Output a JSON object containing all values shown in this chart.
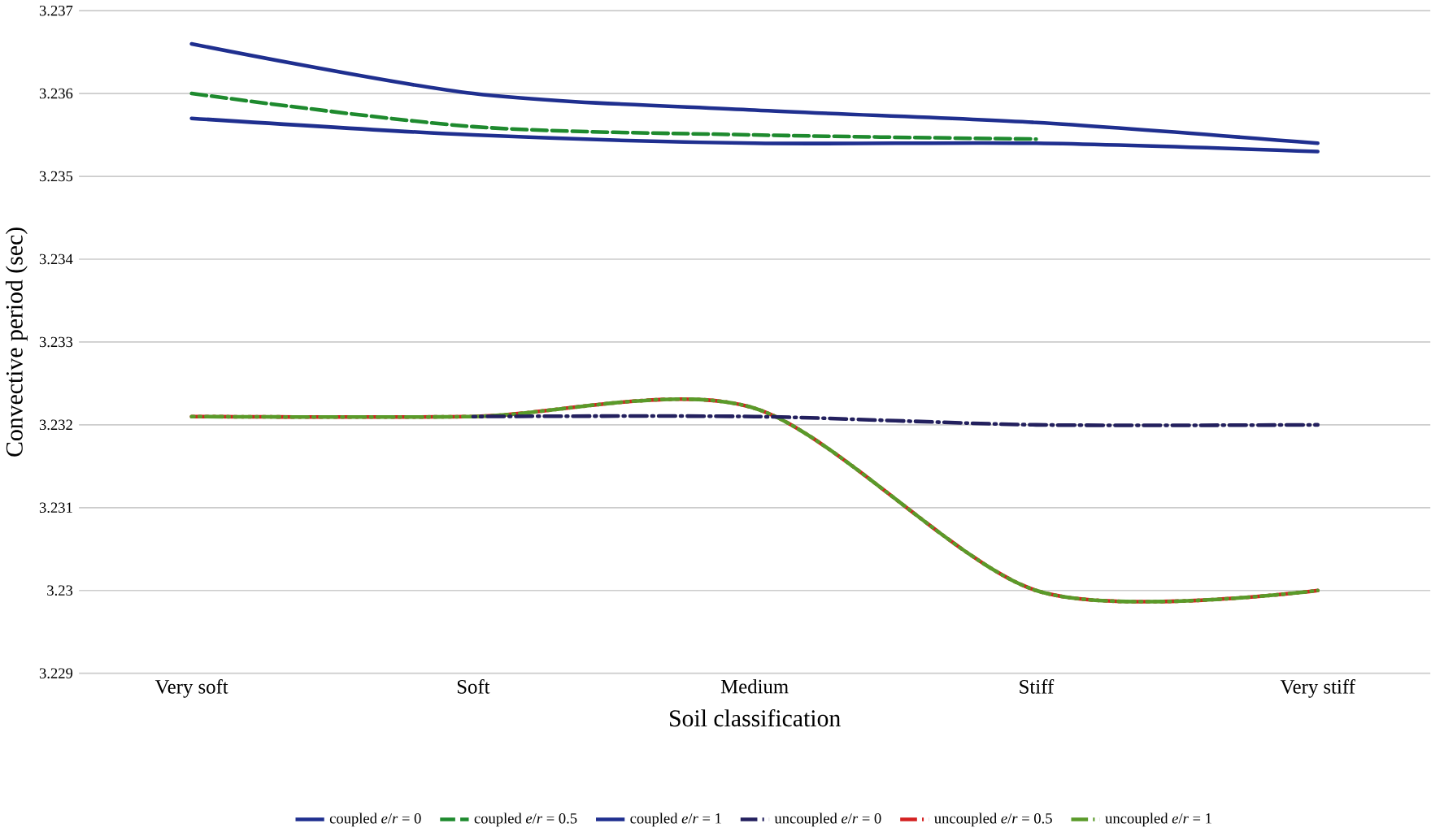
{
  "chart_data": {
    "type": "line",
    "xlabel": "Soil classification",
    "ylabel": "Convective period (sec)",
    "categories": [
      "Very soft",
      "Soft",
      "Medium",
      "Stiff",
      "Very stiff"
    ],
    "ylim": [
      3.229,
      3.237
    ],
    "yticks": [
      3.229,
      3.23,
      3.231,
      3.232,
      3.233,
      3.234,
      3.235,
      3.236,
      3.237
    ],
    "grid": "y",
    "legend": "bottom",
    "marker": "none",
    "series": [
      {
        "name": "coupled *e*/*r* = 0",
        "color": "#1f2f8f",
        "line_style": "solid",
        "values": [
          3.2366,
          3.236,
          3.2358,
          3.23565,
          3.2354
        ]
      },
      {
        "name": "coupled *e*/*r* = 0.5",
        "color": "#1e8a2e",
        "line_style": "dashed",
        "values": [
          3.236,
          3.2356,
          3.2355,
          3.23545,
          null
        ]
      },
      {
        "name": "coupled *e*/*r* = 1",
        "color": "#1f2f8f",
        "line_style": "solid",
        "values": [
          3.2357,
          3.2355,
          3.2354,
          3.2354,
          3.2353
        ]
      },
      {
        "name": "uncoupled *e*/*r* = 0",
        "color": "#23205e",
        "line_style": "dashdot",
        "values": [
          null,
          3.2321,
          3.2321,
          3.232,
          3.232
        ]
      },
      {
        "name": "uncoupled *e*/*r* = 0.5",
        "color": "#d42020",
        "line_style": "dashdot",
        "values": [
          3.2321,
          3.2321,
          3.2322,
          3.23,
          3.23
        ]
      },
      {
        "name": "uncoupled *e*/*r* = 1",
        "color": "#5a9a2a",
        "line_style": "dashdot",
        "values": [
          3.2321,
          3.2321,
          3.2322,
          3.23,
          3.23
        ]
      }
    ]
  }
}
